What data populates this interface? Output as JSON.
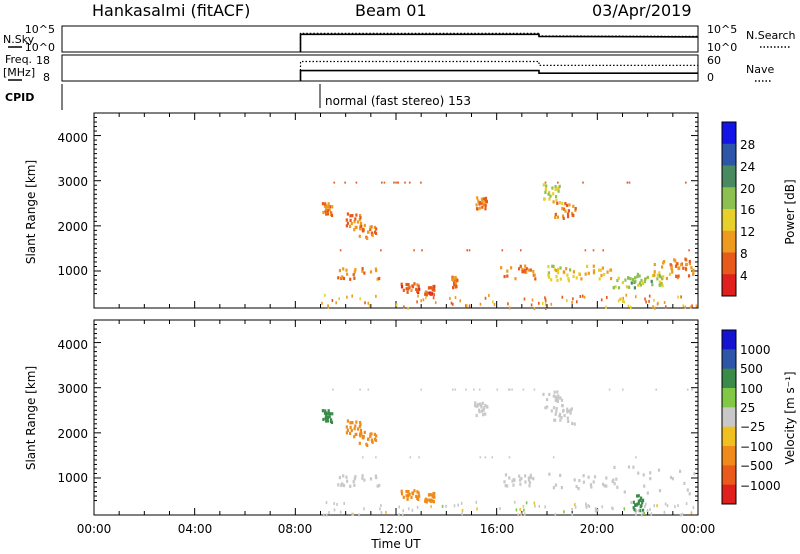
{
  "header": {
    "site": "Hankasalmi (fitACF)",
    "beam": "Beam 01",
    "date": "03/Apr/2019"
  },
  "status_panels": {
    "nsky": {
      "label": "N.Sky",
      "ticks": [
        "10^5",
        "10^0"
      ]
    },
    "nsearch": {
      "label": "N.Search",
      "ticks": [
        "10^5",
        "10^0"
      ]
    },
    "freq": {
      "label_line1": "Freq.",
      "label_line2": "[MHz]",
      "ticks": [
        "18",
        "8"
      ]
    },
    "nave": {
      "label": "Nave",
      "ticks": [
        "60",
        "0"
      ]
    },
    "cpid": {
      "label": "CPID",
      "mode_text": "normal (fast stereo) 153"
    }
  },
  "axes": {
    "xlabel": "Time UT",
    "x_ticks": [
      "00:00",
      "04:00",
      "08:00",
      "12:00",
      "16:00",
      "20:00",
      "00:00"
    ],
    "xlim_hours": [
      0,
      24
    ],
    "ylabel": "Slant Range [km]",
    "y_ticks": [
      "4000",
      "3000",
      "2000",
      "1000"
    ],
    "ylim_km": [
      180,
      4500
    ]
  },
  "colorbars": {
    "power": {
      "label": "Power [dB]",
      "ticks": [
        "28",
        "24",
        "20",
        "16",
        "12",
        "8",
        "4"
      ],
      "colors": [
        "#1414e6",
        "#2e56a8",
        "#4a8a60",
        "#8cc050",
        "#e8d02a",
        "#ee9a1e",
        "#e85a1c",
        "#e0201c"
      ]
    },
    "velocity": {
      "label": "Velocity [m s⁻¹]",
      "ticks": [
        "1000",
        "500",
        "100",
        "25",
        "−25",
        "−100",
        "−500",
        "−1000"
      ],
      "colors": [
        "#1414d0",
        "#2e56a8",
        "#3a8a4a",
        "#80c846",
        "#c8c8c8",
        "#f0c020",
        "#f08a1a",
        "#ea5a1a",
        "#e0201c"
      ]
    }
  },
  "chart_data": [
    {
      "type": "line",
      "title": "N.Sky / N.Search",
      "x_hours": [
        9.0,
        9.0,
        18.0,
        18.0,
        24.0
      ],
      "series": [
        {
          "name": "N.Sky",
          "values": [
            0,
            3.4,
            3.4,
            3.0,
            2.9
          ]
        },
        {
          "name": "N.Search",
          "values": [
            0,
            3.6,
            3.6,
            3.1,
            3.0
          ]
        }
      ]
    },
    {
      "type": "line",
      "title": "Freq. / Nave",
      "x_hours": [
        9.0,
        9.0,
        18.0,
        18.0,
        24.0
      ],
      "series": [
        {
          "name": "Freq.",
          "values": [
            8,
            12.0,
            12.0,
            11.0,
            11.0
          ]
        },
        {
          "name": "Nave",
          "values": [
            0,
            45,
            45,
            36,
            36
          ]
        }
      ]
    },
    {
      "type": "heatmap",
      "title": "Power [dB]",
      "xlabel": "Time UT",
      "ylabel": "Slant Range [km]",
      "xlim": [
        0,
        24
      ],
      "ylim": [
        180,
        4500
      ],
      "patches": [
        {
          "t0": 9.05,
          "t1": 9.45,
          "r0": 2250,
          "r1": 2550,
          "power": 8
        },
        {
          "t0": 10.0,
          "t1": 10.6,
          "r0": 1950,
          "r1": 2300,
          "power": 8
        },
        {
          "t0": 10.5,
          "t1": 11.2,
          "r0": 1700,
          "r1": 2050,
          "power": 8
        },
        {
          "t0": 9.6,
          "t1": 11.3,
          "r0": 850,
          "r1": 1100,
          "power": 8
        },
        {
          "t0": 12.1,
          "t1": 12.9,
          "r0": 560,
          "r1": 760,
          "power": 6
        },
        {
          "t0": 13.1,
          "t1": 13.5,
          "r0": 500,
          "r1": 700,
          "power": 6
        },
        {
          "t0": 14.2,
          "t1": 14.4,
          "r0": 650,
          "r1": 900,
          "power": 8
        },
        {
          "t0": 15.1,
          "t1": 15.6,
          "r0": 2400,
          "r1": 2700,
          "power": 8
        },
        {
          "t0": 16.1,
          "t1": 17.5,
          "r0": 850,
          "r1": 1150,
          "power": 8
        },
        {
          "t0": 17.8,
          "t1": 18.6,
          "r0": 2500,
          "r1": 2950,
          "power": 16
        },
        {
          "t0": 18.2,
          "t1": 19.1,
          "r0": 2200,
          "r1": 2600,
          "power": 8
        },
        {
          "t0": 18.0,
          "t1": 18.9,
          "r0": 800,
          "r1": 1150,
          "power": 14
        },
        {
          "t0": 19.0,
          "t1": 20.6,
          "r0": 850,
          "r1": 1150,
          "power": 12
        },
        {
          "t0": 20.6,
          "t1": 21.6,
          "r0": 650,
          "r1": 1000,
          "power": 18
        },
        {
          "t0": 21.6,
          "t1": 22.6,
          "r0": 700,
          "r1": 950,
          "power": 18
        },
        {
          "t0": 22.2,
          "t1": 23.2,
          "r0": 850,
          "r1": 1250,
          "power": 10
        },
        {
          "t0": 23.0,
          "t1": 23.9,
          "r0": 900,
          "r1": 1300,
          "power": 8
        }
      ]
    },
    {
      "type": "heatmap",
      "title": "Velocity [m s⁻¹]",
      "xlabel": "Time UT",
      "ylabel": "Slant Range [km]",
      "xlim": [
        0,
        24
      ],
      "ylim": [
        180,
        4500
      ],
      "patches": [
        {
          "t0": 9.05,
          "t1": 9.45,
          "r0": 2250,
          "r1": 2550,
          "velocity": 150
        },
        {
          "t0": 10.0,
          "t1": 10.6,
          "r0": 1950,
          "r1": 2300,
          "velocity": -150
        },
        {
          "t0": 10.5,
          "t1": 11.2,
          "r0": 1700,
          "r1": 2050,
          "velocity": -300
        },
        {
          "t0": 9.6,
          "t1": 11.3,
          "r0": 850,
          "r1": 1100,
          "velocity": 0
        },
        {
          "t0": 12.1,
          "t1": 12.9,
          "r0": 560,
          "r1": 760,
          "velocity": -400
        },
        {
          "t0": 13.1,
          "t1": 13.5,
          "r0": 500,
          "r1": 700,
          "velocity": -400
        },
        {
          "t0": 15.1,
          "t1": 15.6,
          "r0": 2400,
          "r1": 2700,
          "velocity": 0
        },
        {
          "t0": 16.1,
          "t1": 17.5,
          "r0": 850,
          "r1": 1150,
          "velocity": 0
        },
        {
          "t0": 17.8,
          "t1": 18.6,
          "r0": 2500,
          "r1": 2950,
          "velocity": 0
        },
        {
          "t0": 18.2,
          "t1": 19.1,
          "r0": 2200,
          "r1": 2600,
          "velocity": 0
        },
        {
          "t0": 18.0,
          "t1": 20.6,
          "r0": 800,
          "r1": 1150,
          "velocity": 0
        },
        {
          "t0": 20.6,
          "t1": 23.9,
          "r0": 650,
          "r1": 1300,
          "velocity": 0
        },
        {
          "t0": 21.4,
          "t1": 21.8,
          "r0": 300,
          "r1": 650,
          "velocity": 150
        }
      ]
    }
  ]
}
